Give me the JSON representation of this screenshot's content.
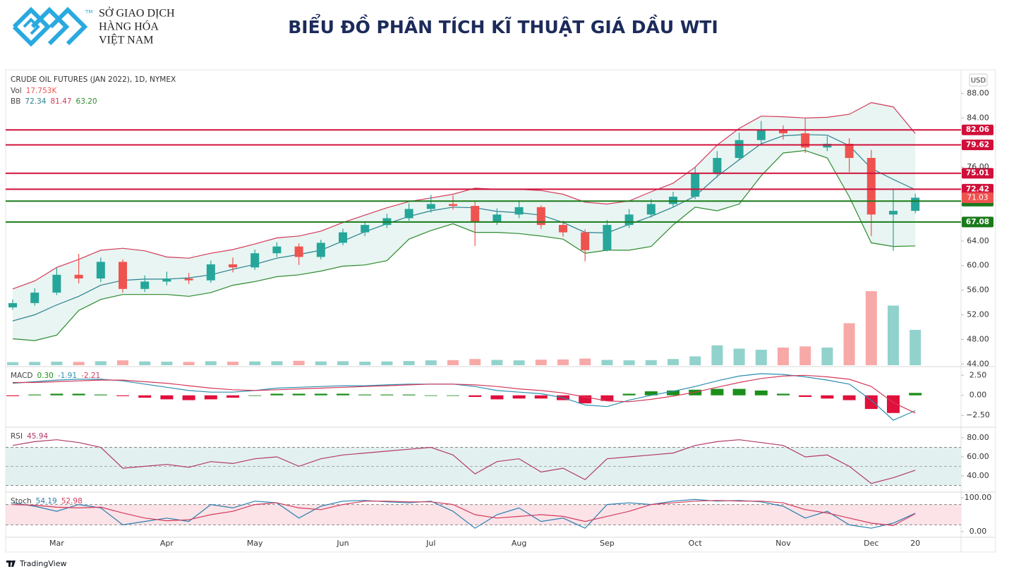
{
  "header": {
    "logo_mark": "TM",
    "logo_lines": [
      "SỞ GIAO DỊCH",
      "HÀNG HÓA",
      "VIỆT NAM"
    ],
    "title": "BIỂU ĐỒ PHÂN TÍCH KĨ THUẬT GIÁ DẦU WTI"
  },
  "footer": "TradingView",
  "chart_data": [
    {
      "type": "candlestick",
      "title": "CRUDE OIL FUTURES (JAN 2022), 1D, NYMEX",
      "indicators": [
        {
          "label": "Vol",
          "readouts": [
            "17.753K"
          ],
          "readout_colors": [
            "#ef5350"
          ]
        },
        {
          "label": "BB",
          "readouts": [
            "72.34",
            "81.47",
            "63.20"
          ],
          "readout_colors": [
            "#2a7f8f",
            "#d33a5a",
            "#2e8b2e"
          ]
        }
      ],
      "currency": "USD",
      "categories": [
        null,
        null,
        "Mar",
        null,
        null,
        null,
        null,
        "Apr",
        null,
        null,
        null,
        "May",
        null,
        null,
        null,
        "Jun",
        null,
        null,
        null,
        "Jul",
        null,
        null,
        null,
        "Aug",
        null,
        null,
        null,
        "Sep",
        null,
        null,
        null,
        "Oct",
        null,
        null,
        null,
        "Nov",
        null,
        null,
        null,
        "Dec",
        null,
        "20"
      ],
      "open": [
        53.2,
        53.9,
        55.6,
        58.5,
        57.9,
        60.6,
        56.2,
        57.4,
        57.9,
        57.6,
        60.2,
        59.7,
        62.0,
        63.1,
        61.4,
        63.7,
        65.4,
        66.6,
        67.7,
        69.2,
        70.0,
        69.7,
        67.1,
        68.3,
        69.5,
        66.6,
        65.4,
        62.5,
        66.6,
        68.3,
        70.0,
        71.2,
        74.9,
        77.5,
        80.4,
        82.1,
        81.5,
        79.2,
        79.8,
        77.5,
        68.3,
        68.9
      ],
      "high": [
        54.5,
        56.3,
        59.6,
        61.9,
        61.3,
        61.0,
        58.4,
        59.0,
        58.8,
        60.8,
        61.3,
        62.6,
        63.8,
        63.6,
        64.2,
        66.0,
        67.2,
        68.4,
        70.1,
        71.5,
        71.4,
        70.5,
        69.3,
        70.6,
        69.8,
        67.3,
        65.9,
        67.4,
        69.2,
        70.8,
        72.0,
        76.0,
        78.6,
        81.6,
        83.5,
        82.8,
        83.9,
        81.0,
        80.7,
        78.8,
        72.5,
        71.7
      ],
      "low": [
        52.8,
        53.5,
        55.2,
        57.1,
        57.3,
        55.6,
        55.7,
        56.8,
        57.0,
        57.2,
        58.9,
        59.3,
        61.4,
        60.1,
        61.0,
        63.3,
        64.8,
        66.1,
        67.3,
        68.6,
        69.1,
        63.2,
        66.6,
        67.7,
        66.0,
        64.7,
        60.7,
        62.3,
        66.1,
        67.8,
        69.5,
        70.8,
        74.3,
        77.1,
        79.7,
        80.5,
        78.3,
        78.6,
        75.2,
        64.8,
        62.4,
        68.5
      ],
      "close": [
        53.9,
        55.6,
        58.5,
        57.9,
        60.6,
        56.2,
        57.4,
        57.9,
        57.6,
        60.2,
        59.7,
        62.0,
        63.1,
        61.4,
        63.7,
        65.4,
        66.6,
        67.7,
        69.2,
        70.0,
        69.7,
        67.1,
        68.3,
        69.5,
        66.6,
        65.4,
        62.5,
        66.6,
        68.3,
        70.0,
        71.2,
        74.9,
        77.5,
        80.4,
        82.1,
        81.5,
        79.2,
        79.8,
        77.5,
        68.3,
        68.9,
        71.03
      ],
      "up_color": "#26a69a",
      "down_color": "#ef5350",
      "volume": [
        14,
        15,
        16,
        15,
        18,
        22,
        17,
        16,
        15,
        18,
        16,
        17,
        18,
        20,
        17,
        18,
        16,
        17,
        19,
        22,
        23,
        28,
        24,
        22,
        25,
        26,
        30,
        24,
        22,
        23,
        28,
        40,
        90,
        75,
        70,
        80,
        85,
        80,
        190,
        335,
        270,
        160
      ],
      "volume_ylim": [
        0,
        600
      ],
      "bollinger": {
        "upper": [
          56.2,
          57.5,
          59.7,
          61.0,
          62.5,
          62.8,
          62.4,
          61.4,
          61.2,
          62.0,
          62.6,
          63.5,
          64.5,
          64.8,
          65.6,
          67.0,
          68.2,
          69.4,
          70.4,
          71.0,
          71.6,
          72.6,
          72.4,
          72.4,
          72.2,
          71.6,
          70.3,
          70.0,
          70.5,
          72.0,
          73.4,
          76.0,
          79.6,
          82.3,
          84.3,
          84.2,
          84.0,
          84.1,
          84.6,
          86.5,
          85.8,
          81.47
        ],
        "basis": [
          51.0,
          52.0,
          53.6,
          55.0,
          56.8,
          57.6,
          57.8,
          57.8,
          58.0,
          58.5,
          59.4,
          60.2,
          61.2,
          61.8,
          62.5,
          64.0,
          65.5,
          66.8,
          68.0,
          68.9,
          69.5,
          69.4,
          68.8,
          68.6,
          68.2,
          67.0,
          65.4,
          65.3,
          66.7,
          68.0,
          69.5,
          71.3,
          74.5,
          77.2,
          79.8,
          81.1,
          81.3,
          81.2,
          79.5,
          75.8,
          74.0,
          72.34
        ],
        "lower": [
          48.1,
          47.8,
          48.7,
          52.7,
          54.5,
          55.3,
          55.3,
          55.3,
          55.0,
          55.6,
          56.8,
          57.4,
          58.2,
          58.5,
          59.1,
          59.9,
          60.1,
          60.8,
          64.3,
          65.7,
          66.8,
          65.4,
          65.4,
          65.2,
          64.8,
          64.3,
          62.0,
          62.5,
          62.5,
          63.1,
          66.6,
          69.5,
          68.9,
          70.0,
          74.6,
          78.3,
          78.7,
          77.5,
          71.2,
          63.7,
          63.1,
          63.2
        ],
        "upper_color": "#d33a5a",
        "basis_color": "#2a7f8f",
        "lower_color": "#2e8b2e",
        "fill": "#e8f5f2"
      },
      "levels": [
        {
          "value": 82.06,
          "color": "#d0103a"
        },
        {
          "value": 79.62,
          "color": "#d0103a"
        },
        {
          "value": 75.01,
          "color": "#d0103a"
        },
        {
          "value": 72.42,
          "color": "#d0103a"
        },
        {
          "value": 70.48,
          "color": "#1b7a1b"
        },
        {
          "value": 67.08,
          "color": "#1b7a1b"
        }
      ],
      "last_price": 71.03,
      "last_price_color": "#ef5350",
      "ylim": [
        43.8,
        91.6
      ],
      "yticks": [
        {
          "value": 88,
          "label": "88.00"
        },
        {
          "value": 84,
          "label": "84.00"
        },
        {
          "value": 76,
          "label": "76.00"
        },
        {
          "value": 64,
          "label": "64.00"
        },
        {
          "value": 60,
          "label": "60.00"
        },
        {
          "value": 56,
          "label": "56.00"
        },
        {
          "value": 52,
          "label": "52.00"
        },
        {
          "value": 48,
          "label": "48.00"
        },
        {
          "value": 44,
          "label": "44.00"
        }
      ],
      "grid": false
    },
    {
      "type": "macd",
      "label": "MACD",
      "readouts": [
        "0.30",
        "-1.91",
        "-2.21"
      ],
      "readout_colors": [
        "#1b8f1b",
        "#2a8fb0",
        "#d33a5a"
      ],
      "macd": [
        1.5,
        1.7,
        1.9,
        2.0,
        2.0,
        1.8,
        1.4,
        1.0,
        0.6,
        0.4,
        0.4,
        0.6,
        0.9,
        1.0,
        1.1,
        1.2,
        1.2,
        1.3,
        1.4,
        1.4,
        1.4,
        1.1,
        0.6,
        0.4,
        0.2,
        -0.3,
        -1.2,
        -1.4,
        -0.6,
        0.0,
        0.5,
        1.1,
        1.8,
        2.4,
        2.7,
        2.6,
        2.3,
        1.9,
        1.4,
        -0.6,
        -3.1,
        -1.91
      ],
      "signal": [
        1.6,
        1.6,
        1.7,
        1.8,
        1.9,
        1.9,
        1.7,
        1.5,
        1.2,
        0.9,
        0.7,
        0.6,
        0.7,
        0.8,
        0.9,
        1.0,
        1.1,
        1.2,
        1.3,
        1.4,
        1.4,
        1.3,
        1.1,
        0.8,
        0.6,
        0.3,
        -0.2,
        -0.7,
        -0.8,
        -0.5,
        -0.1,
        0.4,
        1.0,
        1.6,
        2.1,
        2.4,
        2.5,
        2.3,
        2.0,
        1.1,
        -0.9,
        -2.21
      ],
      "histogram": [
        -0.1,
        0.1,
        0.2,
        0.2,
        0.1,
        -0.1,
        -0.3,
        -0.5,
        -0.6,
        -0.5,
        -0.3,
        0.0,
        0.2,
        0.2,
        0.2,
        0.2,
        0.1,
        0.1,
        0.1,
        0.0,
        0.0,
        -0.2,
        -0.5,
        -0.4,
        -0.4,
        -0.6,
        -1.0,
        -0.7,
        0.2,
        0.5,
        0.6,
        0.7,
        0.8,
        0.8,
        0.6,
        0.2,
        -0.2,
        -0.4,
        -0.6,
        -1.7,
        -2.2,
        0.3
      ],
      "macd_color": "#2a8fb0",
      "signal_color": "#d33a5a",
      "hist_up_color": "#1b8f1b",
      "hist_down_color": "#e0103c",
      "ylim": [
        -3.8,
        3.4
      ],
      "yticks": [
        {
          "value": 2.5,
          "label": "2.50"
        },
        {
          "value": 0,
          "label": "0.00"
        },
        {
          "value": -2.5,
          "label": "−2.50"
        }
      ]
    },
    {
      "type": "rsi",
      "label": "RSI",
      "readouts": [
        "45.94"
      ],
      "readout_colors": [
        "#b03a6a"
      ],
      "values": [
        72,
        76,
        78,
        75,
        70,
        48,
        50,
        52,
        49,
        55,
        53,
        58,
        60,
        50,
        58,
        62,
        64,
        66,
        68,
        70,
        62,
        42,
        55,
        58,
        44,
        48,
        36,
        58,
        60,
        62,
        64,
        72,
        76,
        78,
        75,
        72,
        60,
        62,
        50,
        32,
        38,
        45.94
      ],
      "color": "#b03a6a",
      "band": [
        30,
        70
      ],
      "midline": 50,
      "band_color": "#e3f0f0",
      "ylim": [
        24.4,
        89.6
      ],
      "yticks": [
        {
          "value": 80,
          "label": "80.00"
        },
        {
          "value": 60,
          "label": "60.00"
        },
        {
          "value": 40,
          "label": "40.00"
        }
      ]
    },
    {
      "type": "stoch",
      "label": "Stoch",
      "readouts": [
        "54.19",
        "52.98"
      ],
      "readout_colors": [
        "#2a7fb0",
        "#d33a5a"
      ],
      "k": [
        85,
        75,
        60,
        80,
        70,
        20,
        30,
        40,
        30,
        80,
        70,
        90,
        85,
        40,
        75,
        90,
        92,
        88,
        85,
        90,
        60,
        10,
        50,
        70,
        30,
        40,
        10,
        80,
        85,
        80,
        90,
        95,
        90,
        92,
        88,
        75,
        40,
        60,
        20,
        10,
        25,
        54.19
      ],
      "d": [
        80,
        78,
        72,
        70,
        72,
        55,
        40,
        32,
        35,
        50,
        60,
        80,
        85,
        70,
        65,
        80,
        90,
        90,
        88,
        88,
        80,
        50,
        40,
        45,
        50,
        45,
        30,
        45,
        60,
        80,
        85,
        90,
        92,
        90,
        90,
        85,
        65,
        55,
        40,
        25,
        18,
        52.98
      ],
      "k_color": "#2a7fb0",
      "d_color": "#d33a5a",
      "band": [
        20,
        80
      ],
      "band_color": "#fbe3e8",
      "ylim": [
        -12.5,
        112.5
      ],
      "yticks": [
        {
          "value": 100,
          "label": "100.00"
        },
        {
          "value": 0,
          "label": "0.00"
        }
      ]
    }
  ]
}
